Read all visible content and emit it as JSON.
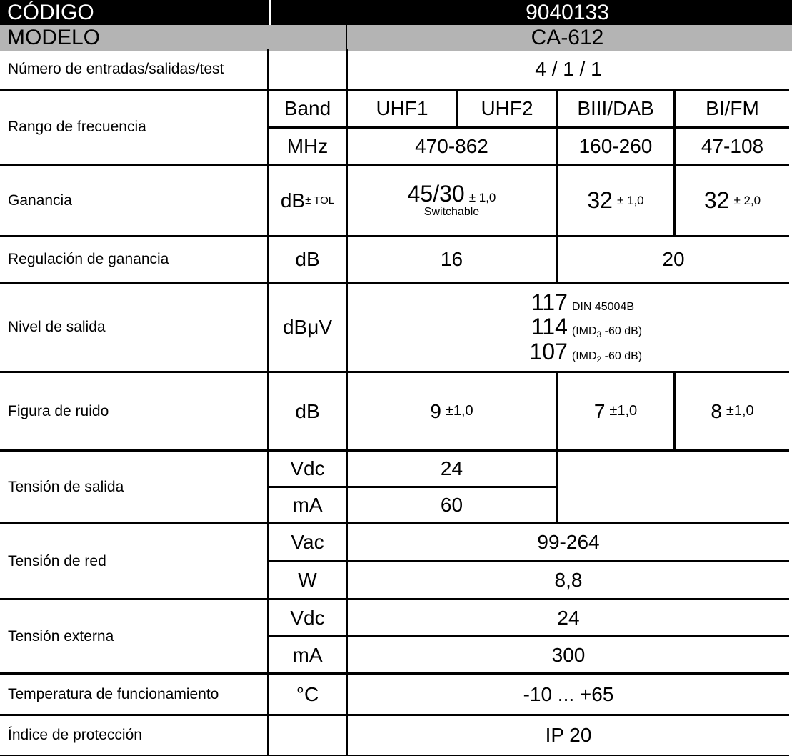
{
  "header": {
    "code_label": "CÓDIGO",
    "code_value": "9040133",
    "model_label": "MODELO",
    "model_value": "CA-612"
  },
  "rows": {
    "io": {
      "label": "Número de entradas/salidas/test",
      "value": "4 / 1 / 1"
    },
    "freq": {
      "label": "Rango de frecuencia",
      "unit_band": "Band",
      "unit_mhz": "MHz",
      "bands": [
        "UHF1",
        "UHF2",
        "BIII/DAB",
        "BI/FM"
      ],
      "ranges": [
        "470-862",
        "160-260",
        "47-108"
      ]
    },
    "gain": {
      "label": "Ganancia",
      "unit": "dB",
      "unit_tol": "± TOL",
      "uhf_value": "45/30",
      "uhf_tol": "± 1,0",
      "uhf_note": "Switchable",
      "biii_value": "32",
      "biii_tol": "± 1,0",
      "bi_value": "32",
      "bi_tol": "± 2,0"
    },
    "gain_reg": {
      "label": "Regulación de ganancia",
      "unit": "dB",
      "uhf": "16",
      "vhf": "20"
    },
    "output": {
      "label": "Nivel de salida",
      "unit": "dBμV",
      "lines": [
        {
          "value": "117",
          "note": "DIN 45004B",
          "sub": "",
          "note_tail": ""
        },
        {
          "value": "114",
          "note": "(IMD",
          "sub": "3",
          "note_tail": " -60 dB)"
        },
        {
          "value": "107",
          "note": "(IMD",
          "sub": "2",
          "note_tail": " -60 dB)"
        }
      ]
    },
    "noise": {
      "label": "Figura de ruido",
      "unit": "dB",
      "uhf": "9",
      "uhf_tol": "±1,0",
      "biii": "7",
      "biii_tol": "±1,0",
      "bi": "8",
      "bi_tol": "±1,0"
    },
    "out_voltage": {
      "label": "Tensión de salida",
      "unit_v": "Vdc",
      "value_v": "24",
      "unit_a": "mA",
      "value_a": "60"
    },
    "mains": {
      "label": "Tensión de red",
      "unit_v": "Vac",
      "value_v": "99-264",
      "unit_w": "W",
      "value_w": "8,8"
    },
    "ext": {
      "label": "Tensión externa",
      "unit_v": "Vdc",
      "value_v": "24",
      "unit_a": "mA",
      "value_a": "300"
    },
    "temp": {
      "label": "Temperatura de funcionamiento",
      "unit": "°C",
      "value": "-10 ... +65"
    },
    "ip": {
      "label": "Índice de protección",
      "value": "IP 20"
    }
  }
}
